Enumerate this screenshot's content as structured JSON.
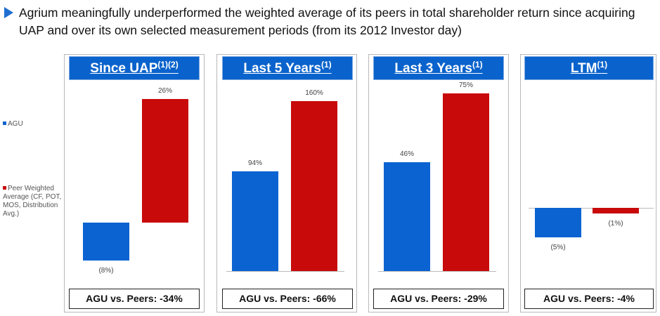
{
  "headline": "Agrium meaningfully underperformed the weighted average of its peers in total shareholder return since acquiring UAP and over its own selected measurement periods (from its 2012 Investor day)",
  "legend": {
    "agu": "AGU",
    "peer": "Peer Weighted Average (CF, POT, MOS, Distribution Avg.)",
    "colors": {
      "agu": "#0b63d1",
      "peer": "#c80a0a"
    }
  },
  "chart_data": [
    {
      "type": "bar",
      "title": "Since UAP",
      "title_sup": "(1)(2)",
      "categories": [
        "AGU",
        "Peer Weighted Average (CF, POT, MOS, Distribution Avg.)"
      ],
      "values": [
        -8,
        26
      ],
      "labels": [
        "(8%)",
        "26%"
      ],
      "summary": "AGU vs. Peers: -34%"
    },
    {
      "type": "bar",
      "title": "Last 5 Years",
      "title_sup": "(1)",
      "categories": [
        "AGU",
        "Peer Weighted Average (CF, POT, MOS, Distribution Avg.)"
      ],
      "values": [
        94,
        160
      ],
      "labels": [
        "94%",
        "160%"
      ],
      "summary": "AGU vs. Peers: -66%"
    },
    {
      "type": "bar",
      "title": "Last 3 Years",
      "title_sup": "(1)",
      "categories": [
        "AGU",
        "Peer Weighted Average (CF, POT, MOS, Distribution Avg.)"
      ],
      "values": [
        46,
        75
      ],
      "labels": [
        "46%",
        "75%"
      ],
      "summary": "AGU vs. Peers: -29%"
    },
    {
      "type": "bar",
      "title": "LTM",
      "title_sup": "(1)",
      "categories": [
        "AGU",
        "Peer Weighted Average (CF, POT, MOS, Distribution Avg.)"
      ],
      "values": [
        -5,
        -1
      ],
      "labels": [
        "(5%)",
        "(1%)"
      ],
      "summary": "AGU vs. Peers: -4%"
    }
  ]
}
